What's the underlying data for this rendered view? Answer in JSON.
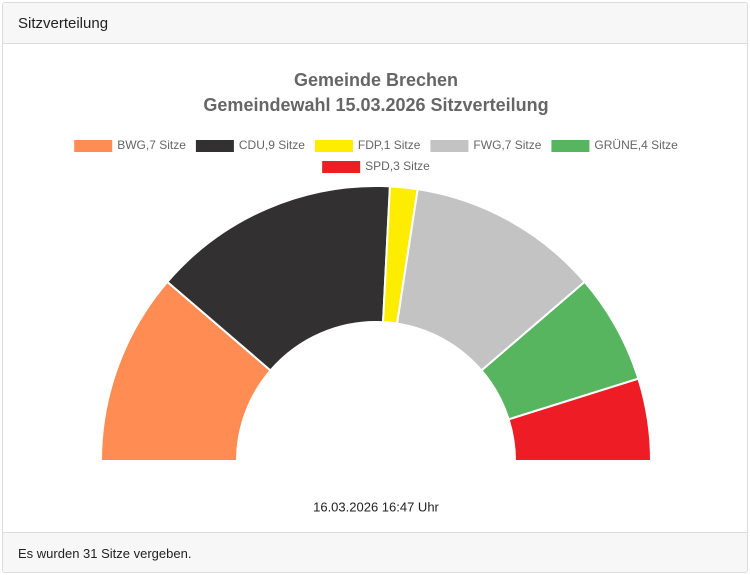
{
  "header": {
    "title": "Sitzverteilung"
  },
  "chart_data": {
    "type": "pie",
    "half_donut": true,
    "title": "Gemeinde Brechen",
    "subtitle": "Gemeindewahl 15.03.2026 Sitzverteilung",
    "categories": [
      "BWG,7 Sitze",
      "CDU,9 Sitze",
      "FDP,1 Sitze",
      "FWG,7 Sitze",
      "GRÜNE,4 Sitze",
      "SPD,3 Sitze"
    ],
    "values": [
      7,
      9,
      1,
      7,
      4,
      3
    ],
    "colors": [
      "#ff8c52",
      "#323031",
      "#ffed00",
      "#c3c3c3",
      "#57b560",
      "#ee1c25"
    ],
    "annotation": "16.03.2026 16:47 Uhr"
  },
  "footer": {
    "text": "Es wurden 31 Sitze vergeben."
  }
}
